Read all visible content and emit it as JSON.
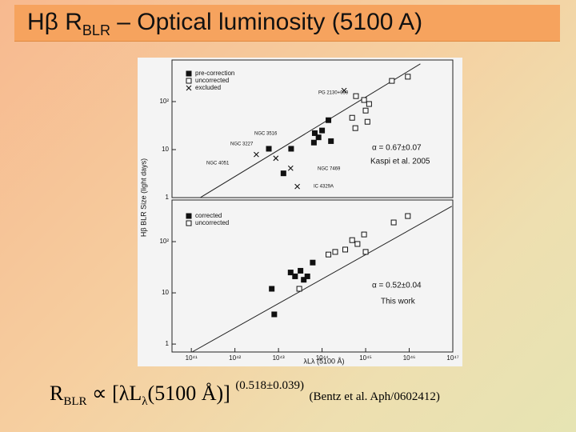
{
  "title": [
    "Hβ  R",
    "BLR",
    " – Optical luminosity (5100 A)"
  ],
  "y_label": "Hβ BLR Size (light days)",
  "x_label": "λLλ (5100 Å)",
  "formula": [
    "R",
    "BLR",
    "∝ [λL",
    "λ",
    "(5100 Å)]",
    "(0.518±0.039)",
    "(Bentz et al.  Aph/0602412)"
  ],
  "chart_data": [
    {
      "type": "scatter",
      "log_x": true,
      "log_y": true,
      "legend": "upper left",
      "xlim": [
        3.6e+40,
        1e+47
      ],
      "ylim": [
        1,
        735
      ],
      "yticks": [
        {
          "value": 1,
          "label": "1"
        },
        {
          "value": 10,
          "label": "10"
        },
        {
          "value": 100,
          "label": "10²"
        }
      ],
      "series": [
        {
          "name": "pre-correction",
          "marker": "filled-square",
          "color": "#111111",
          "x": [
            6e+42,
            1.95e+43,
            1.3e+43,
            6.8e+43,
            8.3e+43,
            1e+44,
            6.5e+43,
            1.4e+44,
            1.6e+44
          ],
          "values": [
            10.4,
            10.4,
            3.2,
            22,
            18,
            25,
            14,
            41,
            15
          ]
        },
        {
          "name": "uncorrected",
          "marker": "open-square",
          "color": "#111111",
          "x": [
            4.9e+44,
            6e+44,
            9.2e+44,
            1e+45,
            1.2e+45,
            1.1e+45,
            4e+45,
            9.3e+45,
            5.8e+44
          ],
          "values": [
            46,
            130,
            108,
            65,
            89,
            38,
            270,
            330,
            28
          ]
        },
        {
          "name": "excluded",
          "marker": "cross",
          "color": "#111111",
          "x": [
            3.1e+42,
            8.7e+42,
            3.2e+44,
            1.9e+43,
            2.7e+43
          ],
          "values": [
            7.9,
            6.6,
            170,
            4.1,
            1.7
          ]
        }
      ],
      "fit": {
        "x": [
          1.6e+41,
          1.8e+46
        ],
        "y": [
          1,
          610
        ]
      },
      "annotations": [
        "PG 2130+099",
        "NGC 3516",
        "NGC 3227",
        "NGC 4051",
        "NGC 7469",
        "IC 4329A",
        "α = 0.67±0.07",
        "Kaspi et al. 2005"
      ]
    },
    {
      "type": "scatter",
      "log_x": true,
      "log_y": true,
      "legend": "upper left",
      "xlim": [
        3.6e+40,
        1e+47
      ],
      "ylim": [
        0.7,
        650
      ],
      "xticks": [
        {
          "value": 1e+41,
          "label": "10⁴¹"
        },
        {
          "value": 1e+42,
          "label": "10⁴²"
        },
        {
          "value": 1e+43,
          "label": "10⁴³"
        },
        {
          "value": 1e+44,
          "label": "10⁴⁴"
        },
        {
          "value": 1e+45,
          "label": "10⁴⁵"
        },
        {
          "value": 1e+46,
          "label": "10⁴⁶"
        },
        {
          "value": 1e+47,
          "label": "10⁴⁷"
        }
      ],
      "yticks": [
        {
          "value": 1,
          "label": "1"
        },
        {
          "value": 10,
          "label": "10"
        },
        {
          "value": 100,
          "label": "10²"
        }
      ],
      "series": [
        {
          "name": "corrected",
          "marker": "filled-square",
          "color": "#111111",
          "x": [
            7e+42,
            8e+42,
            1.9e+43,
            2.4e+43,
            3.2e+43,
            3.8e+43,
            4.6e+43,
            6.1e+43
          ],
          "values": [
            12,
            3.8,
            25,
            21,
            27,
            18,
            21,
            39
          ]
        },
        {
          "name": "uncorrected",
          "marker": "open-square",
          "color": "#111111",
          "x": [
            1.4e+44,
            2e+44,
            3.4e+44,
            4.9e+44,
            6.5e+44,
            9.2e+44,
            1e+45,
            4.4e+45,
            9.3e+45,
            3e+43
          ],
          "values": [
            56,
            63,
            70,
            107,
            90,
            138,
            63,
            237,
            316,
            12
          ]
        }
      ],
      "fit": {
        "x": [
          1.04e+41,
          9.5e+46
        ],
        "y": [
          0.7,
          490
        ]
      },
      "annotations": [
        "α = 0.52±0.04",
        "This work"
      ]
    }
  ]
}
